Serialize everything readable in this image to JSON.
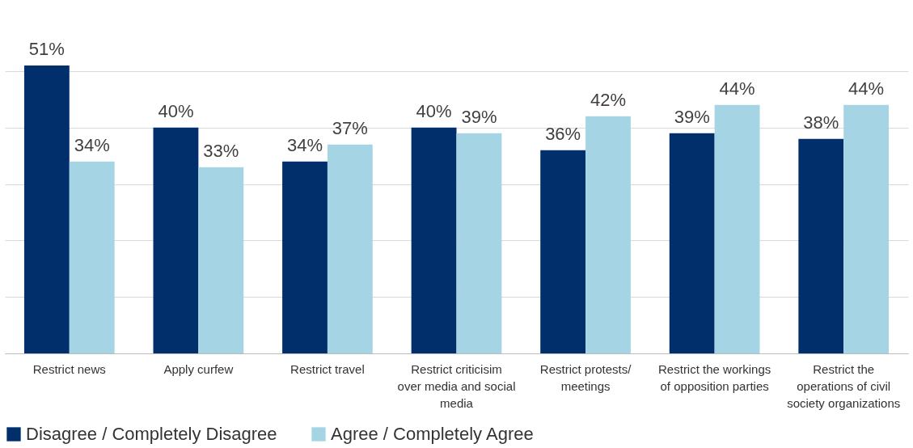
{
  "chart_data": {
    "type": "bar",
    "categories": [
      "Restrict news",
      "Apply curfew",
      "Restrict travel",
      "Restrict criticisim over media and social media",
      "Restrict protests/ meetings",
      "Restrict the workings of opposition parties",
      "Restrict the operations of civil society organizations"
    ],
    "series": [
      {
        "name": "Disagree / Completely Disagree",
        "color": "#002f6c",
        "values": [
          51,
          40,
          34,
          40,
          36,
          39,
          38
        ],
        "value_labels": [
          "51%",
          "40%",
          "34%",
          "40%",
          "36%",
          "39%",
          "38%"
        ]
      },
      {
        "name": "Agree / Completely Agree",
        "color": "#a5d5e5",
        "values": [
          34,
          33,
          37,
          39,
          42,
          44,
          44
        ],
        "value_labels": [
          "34%",
          "33%",
          "37%",
          "39%",
          "42%",
          "44%",
          "44%"
        ]
      }
    ],
    "yticks": [
      {
        "value": 0,
        "label": null
      },
      {
        "value": 10,
        "label": null
      },
      {
        "value": 20,
        "label": null
      },
      {
        "value": 30,
        "label": null
      },
      {
        "value": 40,
        "label": null
      },
      {
        "value": 50,
        "label": null
      }
    ],
    "grid": "y",
    "tick_labels": "x",
    "legend": "bottom"
  }
}
